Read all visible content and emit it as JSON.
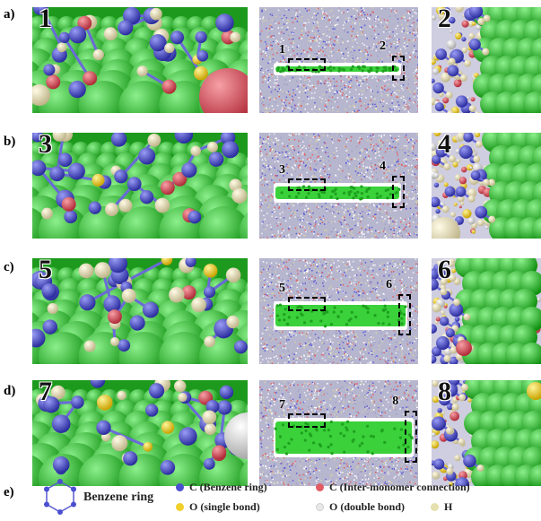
{
  "rows": [
    {
      "label": "a)",
      "zoom_left": "1",
      "zoom_right": "2",
      "box1_label": "1",
      "box2_label": "2",
      "mid_length": 0.78,
      "mid_thickness": 6,
      "mid_offset_top": 66
    },
    {
      "label": "b)",
      "zoom_left": "3",
      "zoom_right": "4",
      "box1_label": "3",
      "box2_label": "4",
      "mid_length": 0.78,
      "mid_thickness": 14,
      "mid_offset_top": 60
    },
    {
      "label": "c)",
      "zoom_left": "5",
      "zoom_right": "6",
      "box1_label": "5",
      "box2_label": "6",
      "mid_length": 0.82,
      "mid_thickness": 24,
      "mid_offset_top": 52
    },
    {
      "label": "d)",
      "zoom_left": "7",
      "zoom_right": "8",
      "box1_label": "7",
      "box2_label": "8",
      "mid_length": 0.86,
      "mid_thickness": 36,
      "mid_offset_top": 46
    }
  ],
  "legend": {
    "label": "e)",
    "benzene": "Benzene ring",
    "items": [
      {
        "text": "C (Benzene ring)",
        "color": "#4b4fd0"
      },
      {
        "text": "C (Inter-monomer connection)",
        "color": "#e15d63"
      },
      {
        "text": "O (single bond)",
        "color": "#f0d02a"
      },
      {
        "text": "O (double bond)",
        "color": "#e8e8e8"
      },
      {
        "text": "H",
        "color": "#e6dfae"
      }
    ]
  },
  "colors": {
    "surface": "#2fc92f",
    "carbon": "#4b4fd0",
    "bond": "#6a6ad8",
    "hydrogen": "#ece4b6",
    "oxygen_single": "#f0d02a",
    "red_carbon": "#d94f5a"
  }
}
